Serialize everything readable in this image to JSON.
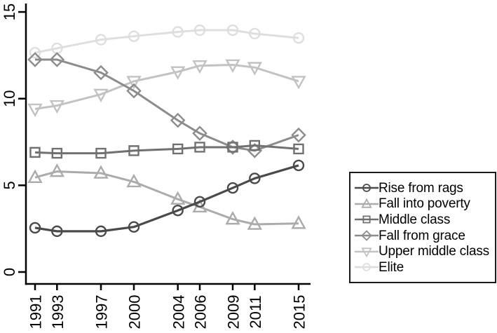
{
  "chart_data": {
    "type": "line",
    "title": "",
    "xlabel": "",
    "ylabel": "",
    "grid": false,
    "legend_position": "outside-right-box",
    "axis_color": "#000000",
    "background_color": "#ffffff",
    "x": [
      1991,
      1993,
      1997,
      2000,
      2004,
      2006,
      2009,
      2011,
      2015
    ],
    "x_tick_labels": [
      "1991",
      "1993",
      "1997",
      "2000",
      "2004",
      "2006",
      "2009",
      "2011",
      "2015"
    ],
    "y_ticks": [
      0,
      5,
      10,
      15
    ],
    "y_tick_labels": [
      "0",
      "5",
      "10",
      "15"
    ],
    "ylim": [
      0,
      15.5
    ],
    "xlim": [
      1990.2,
      2016.1
    ],
    "series": [
      {
        "name": "Rise from rags",
        "marker": "circle",
        "color": "#4a4a4a",
        "values": [
          2.55,
          2.35,
          2.35,
          2.6,
          3.55,
          4.05,
          4.85,
          5.4,
          6.15
        ]
      },
      {
        "name": "Fall into poverty",
        "marker": "triangle-up",
        "color": "#ababab",
        "values": [
          5.45,
          5.8,
          5.7,
          5.2,
          4.2,
          3.75,
          3.05,
          2.75,
          2.8
        ]
      },
      {
        "name": "Middle class",
        "marker": "square",
        "color": "#707070",
        "values": [
          6.9,
          6.85,
          6.85,
          7.0,
          7.1,
          7.2,
          7.2,
          7.3,
          7.1
        ]
      },
      {
        "name": "Fall from grace",
        "marker": "diamond",
        "color": "#8c8c8c",
        "values": [
          12.25,
          12.25,
          11.5,
          10.45,
          8.75,
          8.0,
          7.2,
          7.0,
          7.9
        ]
      },
      {
        "name": "Upper middle class",
        "marker": "triangle-down",
        "color": "#c2c2c2",
        "values": [
          9.4,
          9.6,
          10.25,
          11.0,
          11.55,
          11.9,
          11.95,
          11.8,
          11.0
        ]
      },
      {
        "name": "Elite",
        "marker": "circle",
        "color": "#dedede",
        "values": [
          12.65,
          12.9,
          13.4,
          13.6,
          13.85,
          13.95,
          13.95,
          13.75,
          13.5
        ]
      }
    ]
  }
}
